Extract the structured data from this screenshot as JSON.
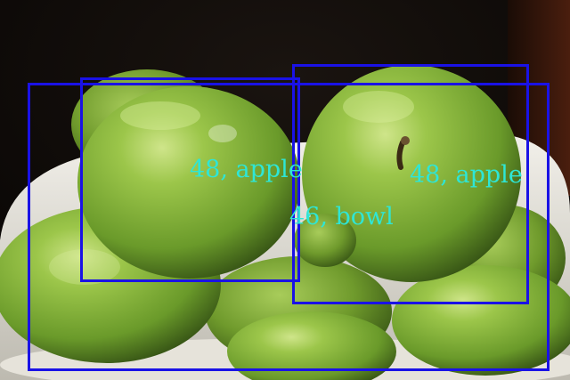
{
  "image": {
    "subject": "green apples in a white bowl",
    "colors": {
      "background": "#0b0806",
      "apple": "#7fb23a",
      "bowl": "#e8e6de",
      "box": "#1a12e6",
      "label": "#2ee6d6"
    }
  },
  "detections": [
    {
      "label": "48, apple"
    },
    {
      "label": "48, apple"
    },
    {
      "label": "46, bowl"
    }
  ]
}
